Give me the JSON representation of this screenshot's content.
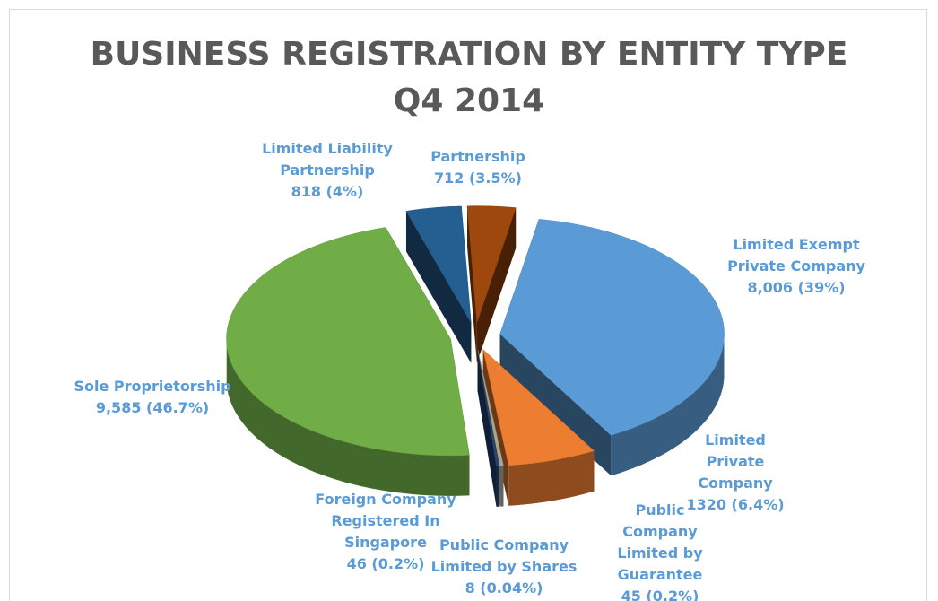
{
  "chart_data": {
    "type": "pie",
    "title": "BUSINESS REGISTRATION BY ENTITY TYPE",
    "subtitle": "Q4 2014",
    "categories": [
      "Limited Exempt Private Company",
      "Limited Private Company",
      "Public Company Limited by Guarantee",
      "Public Company Limited by Shares",
      "Foreign Company Registered In Singapore",
      "Sole Proprietorship",
      "Limited Liability Partnership",
      "Partnership"
    ],
    "values": [
      8006,
      1320,
      45,
      8,
      46,
      9585,
      818,
      712
    ],
    "value_labels": [
      "8,006 (39%)",
      "1320 (6.4%)",
      "45 (0.2%)",
      "8 (0.04%)",
      "46 (0.2%)",
      "9,585 (46.7%)",
      "818 (4%)",
      "712 (3.5%)"
    ],
    "colors": [
      "#5b9bd5",
      "#ed7d31",
      "#a5a5a5",
      "#ffc000",
      "#264478",
      "#70ad47",
      "#255e91",
      "#9e480e"
    ]
  }
}
